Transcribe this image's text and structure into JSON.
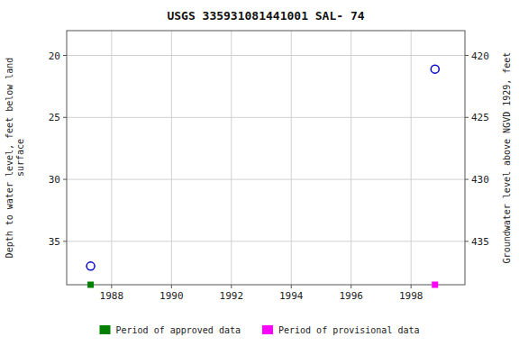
{
  "chart_data": {
    "type": "scatter",
    "title": "USGS 335931081441001 SAL-  74",
    "y_label": "Depth to water level, feet below land\n surface",
    "y2_label": "Groundwater level above NGVD 1929, feet",
    "xlim": [
      1986.5,
      1999.8
    ],
    "xticks": [
      1988,
      1990,
      1992,
      1994,
      1996,
      1998
    ],
    "ylim": [
      38.5,
      18
    ],
    "yticks": [
      20,
      25,
      30,
      35
    ],
    "y2lim": [
      438.5,
      418
    ],
    "y2ticks": [
      420,
      425,
      430,
      435
    ],
    "grid": true,
    "legend": "bottom",
    "series": [
      {
        "color": "#0000cc",
        "marker": "circle-open",
        "x": [
          1987.3,
          1998.8
        ],
        "values": [
          37.0,
          21.1
        ]
      },
      {
        "name": "Period of approved data",
        "color": "#008000",
        "marker": "square",
        "x": [
          1987.3
        ],
        "values": [
          38.5
        ]
      },
      {
        "name": "Period of provisional data",
        "color": "#ff00ff",
        "marker": "square",
        "x": [
          1998.8
        ],
        "values": [
          38.5
        ]
      }
    ]
  }
}
